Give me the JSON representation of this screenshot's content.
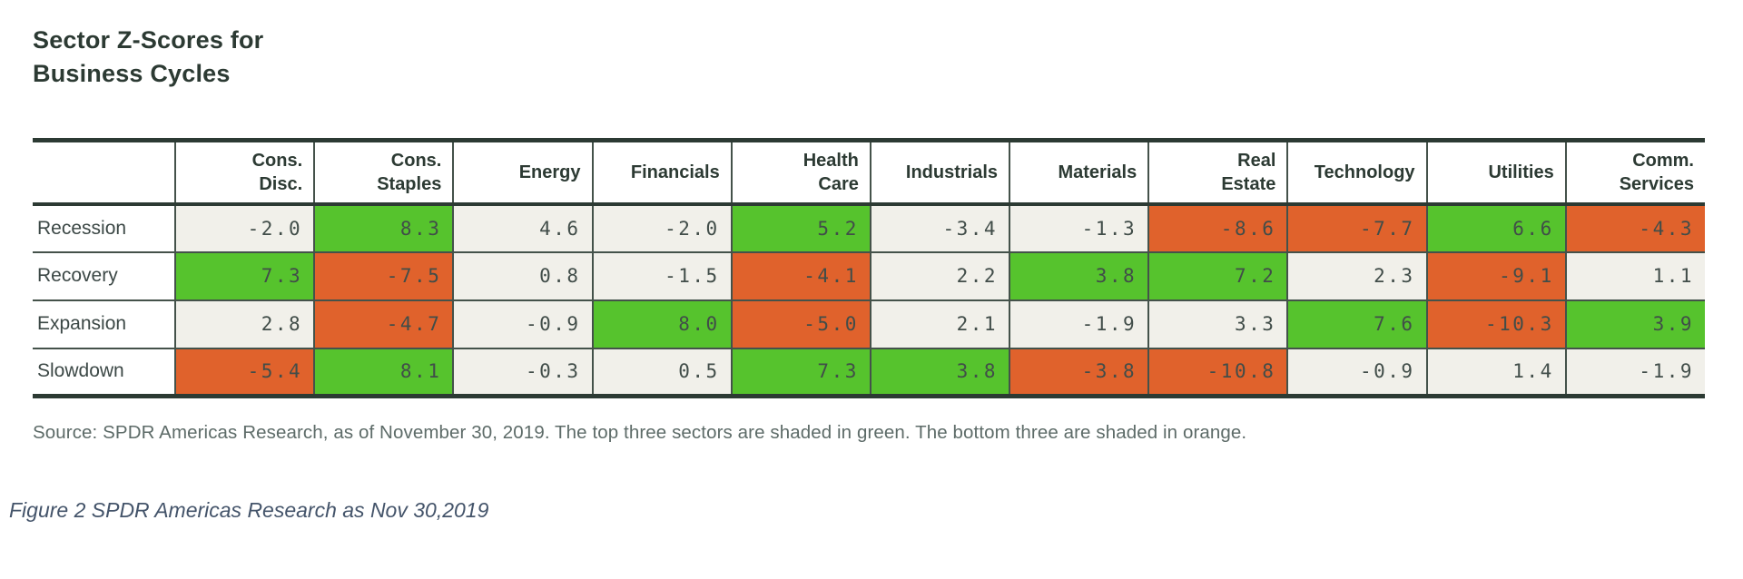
{
  "title": {
    "line1": "Sector Z-Scores for",
    "line2": "Business Cycles"
  },
  "table": {
    "corner_label": "",
    "columns": [
      "Cons.\nDisc.",
      "Cons.\nStaples",
      "Energy",
      "Financials",
      "Health\nCare",
      "Industrials",
      "Materials",
      "Real\nEstate",
      "Technology",
      "Utilities",
      "Comm.\nServices"
    ],
    "rows": [
      {
        "label": "Recession",
        "cells": [
          {
            "v": "-2.0",
            "s": "none"
          },
          {
            "v": "8.3",
            "s": "green"
          },
          {
            "v": "4.6",
            "s": "none"
          },
          {
            "v": "-2.0",
            "s": "none"
          },
          {
            "v": "5.2",
            "s": "green"
          },
          {
            "v": "-3.4",
            "s": "none"
          },
          {
            "v": "-1.3",
            "s": "none"
          },
          {
            "v": "-8.6",
            "s": "orange"
          },
          {
            "v": "-7.7",
            "s": "orange"
          },
          {
            "v": "6.6",
            "s": "green"
          },
          {
            "v": "-4.3",
            "s": "orange"
          }
        ]
      },
      {
        "label": "Recovery",
        "cells": [
          {
            "v": "7.3",
            "s": "green"
          },
          {
            "v": "-7.5",
            "s": "orange"
          },
          {
            "v": "0.8",
            "s": "none"
          },
          {
            "v": "-1.5",
            "s": "none"
          },
          {
            "v": "-4.1",
            "s": "orange"
          },
          {
            "v": "2.2",
            "s": "none"
          },
          {
            "v": "3.8",
            "s": "green"
          },
          {
            "v": "7.2",
            "s": "green"
          },
          {
            "v": "2.3",
            "s": "none"
          },
          {
            "v": "-9.1",
            "s": "orange"
          },
          {
            "v": "1.1",
            "s": "none"
          }
        ]
      },
      {
        "label": "Expansion",
        "cells": [
          {
            "v": "2.8",
            "s": "none"
          },
          {
            "v": "-4.7",
            "s": "orange"
          },
          {
            "v": "-0.9",
            "s": "none"
          },
          {
            "v": "8.0",
            "s": "green"
          },
          {
            "v": "-5.0",
            "s": "orange"
          },
          {
            "v": "2.1",
            "s": "none"
          },
          {
            "v": "-1.9",
            "s": "none"
          },
          {
            "v": "3.3",
            "s": "none"
          },
          {
            "v": "7.6",
            "s": "green"
          },
          {
            "v": "-10.3",
            "s": "orange"
          },
          {
            "v": "3.9",
            "s": "green"
          }
        ]
      },
      {
        "label": "Slowdown",
        "cells": [
          {
            "v": "-5.4",
            "s": "orange"
          },
          {
            "v": "8.1",
            "s": "green"
          },
          {
            "v": "-0.3",
            "s": "none"
          },
          {
            "v": "0.5",
            "s": "none"
          },
          {
            "v": "7.3",
            "s": "green"
          },
          {
            "v": "3.8",
            "s": "green"
          },
          {
            "v": "-3.8",
            "s": "orange"
          },
          {
            "v": "-10.8",
            "s": "orange"
          },
          {
            "v": "-0.9",
            "s": "none"
          },
          {
            "v": "1.4",
            "s": "none"
          },
          {
            "v": "-1.9",
            "s": "none"
          }
        ]
      }
    ]
  },
  "source_note": "Source: SPDR Americas Research, as of November 30, 2019. The top three sectors are shaded in green. The bottom three are shaded in orange.",
  "figure_caption": "Figure 2 SPDR Americas Research as Nov 30,2019",
  "colors": {
    "green": "#56c32d",
    "orange": "#e0622c",
    "neutral_cell": "#f1f0ea",
    "thin_border": "#44524a",
    "heavy_border": "#2c3a33",
    "source_text": "#5d6b68",
    "caption_text": "#44546a"
  },
  "chart_data": {
    "type": "table",
    "title": "Sector Z-Scores for Business Cycles",
    "categories": [
      "Cons. Disc.",
      "Cons. Staples",
      "Energy",
      "Financials",
      "Health Care",
      "Industrials",
      "Materials",
      "Real Estate",
      "Technology",
      "Utilities",
      "Comm. Services"
    ],
    "series": [
      {
        "name": "Recession",
        "values": [
          -2.0,
          8.3,
          4.6,
          -2.0,
          5.2,
          -3.4,
          -1.3,
          -8.6,
          -7.7,
          6.6,
          -4.3
        ]
      },
      {
        "name": "Recovery",
        "values": [
          7.3,
          -7.5,
          0.8,
          -1.5,
          -4.1,
          2.2,
          3.8,
          7.2,
          2.3,
          -9.1,
          1.1
        ]
      },
      {
        "name": "Expansion",
        "values": [
          2.8,
          -4.7,
          -0.9,
          8.0,
          -5.0,
          2.1,
          -1.9,
          3.3,
          7.6,
          -10.3,
          3.9
        ]
      },
      {
        "name": "Slowdown",
        "values": [
          -5.4,
          8.1,
          -0.3,
          0.5,
          7.3,
          3.8,
          -3.8,
          -10.8,
          -0.9,
          1.4,
          -1.9
        ]
      }
    ],
    "shading_rule": "Top three sectors per business-cycle row shaded green; bottom three shaded orange.",
    "legend_position": "none",
    "grid": true
  }
}
